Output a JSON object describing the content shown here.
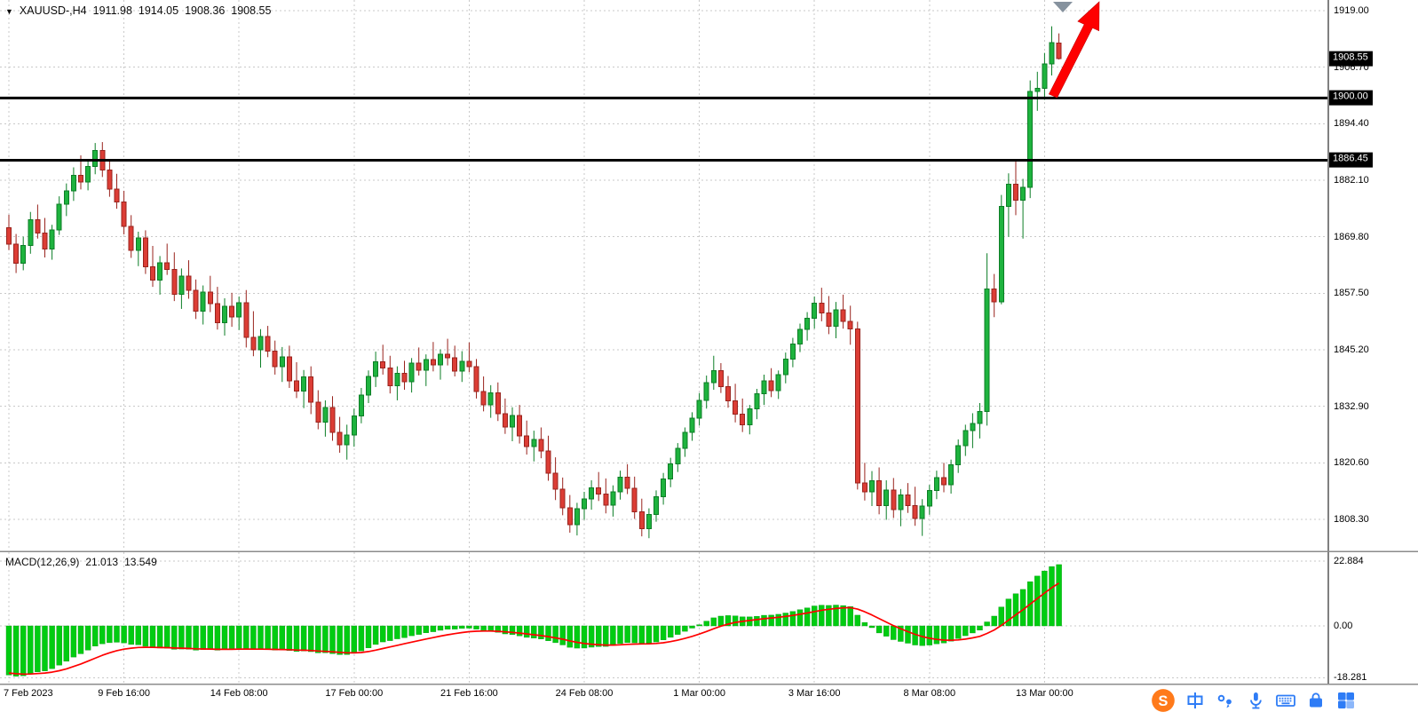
{
  "chart": {
    "header": {
      "dropdown": "▼",
      "symbol": "XAUUSD-,H4",
      "open": "1911.98",
      "high": "1914.05",
      "low": "1908.36",
      "close": "1908.55"
    }
  },
  "macd": {
    "header": {
      "title": "MACD(12,26,9)",
      "value1": "21.013",
      "value2": "13.549"
    }
  },
  "annotations": {
    "trend_arrow": {
      "type": "arrow",
      "direction": "up-right",
      "color": "#fe0000"
    },
    "marker_triangle": {
      "color": "#86929e"
    }
  },
  "taskbar": {
    "icons": [
      {
        "name": "sogou-input-logo",
        "label": "S",
        "color": "#ff7a1a"
      },
      {
        "name": "ime-chinese-mode",
        "label": "中",
        "color": "#2e7cf6"
      },
      {
        "name": "ime-punctuation",
        "label": "",
        "color": "#2e7cf6"
      },
      {
        "name": "voice-input",
        "label": "",
        "color": "#2e7cf6"
      },
      {
        "name": "soft-keyboard",
        "label": "",
        "color": "#2e7cf6"
      },
      {
        "name": "ime-toolbox-bag",
        "label": "",
        "color": "#2e7cf6"
      },
      {
        "name": "ime-toolbox-grid",
        "label": "",
        "color": "#2e7cf6"
      }
    ]
  },
  "chart_data": {
    "type": "candlestick+macd",
    "title": "XAUUSD- H4",
    "timeframe": "H4",
    "grid": true,
    "colors": {
      "up": "#1eb33e",
      "up_stroke": "#0c7e26",
      "down": "#dc3d35",
      "down_stroke": "#99231d",
      "grid": "#c9c9c9",
      "histogram": "#00cc11",
      "signal_line": "#ff0000",
      "level_line": "#000000",
      "badge_bg": "#000000"
    },
    "y_axis": {
      "gridlines": [
        1919.0,
        1906.7,
        1894.4,
        1882.1,
        1869.8,
        1857.5,
        1845.2,
        1832.9,
        1820.6,
        1808.3
      ],
      "range": [
        1801.5,
        1921.3
      ]
    },
    "hlines": [
      {
        "price": 1900.0,
        "label": "1900.00"
      },
      {
        "price": 1886.45,
        "label": "1886.45"
      }
    ],
    "current_price": {
      "price": 1908.55,
      "label": "1908.55"
    },
    "x_labels": [
      {
        "text": "7 Feb 2023",
        "bar": 0
      },
      {
        "text": "9 Feb 16:00",
        "bar": 16
      },
      {
        "text": "14 Feb 08:00",
        "bar": 32
      },
      {
        "text": "17 Feb 00:00",
        "bar": 48
      },
      {
        "text": "21 Feb 16:00",
        "bar": 64
      },
      {
        "text": "24 Feb 08:00",
        "bar": 80
      },
      {
        "text": "1 Mar 00:00",
        "bar": 96
      },
      {
        "text": "3 Mar 16:00",
        "bar": 112
      },
      {
        "text": "8 Mar 08:00",
        "bar": 128
      },
      {
        "text": "13 Mar 00:00",
        "bar": 144
      }
    ],
    "ohlc": [
      [
        1871.8,
        1874.6,
        1866.9,
        1868.2
      ],
      [
        1868.2,
        1870.4,
        1861.9,
        1864.0
      ],
      [
        1864.0,
        1869.8,
        1862.5,
        1867.9
      ],
      [
        1867.9,
        1875.2,
        1866.1,
        1873.5
      ],
      [
        1873.5,
        1876.8,
        1869.4,
        1870.6
      ],
      [
        1870.6,
        1873.9,
        1865.3,
        1867.1
      ],
      [
        1867.1,
        1872.4,
        1864.8,
        1871.3
      ],
      [
        1871.3,
        1878.6,
        1870.2,
        1876.9
      ],
      [
        1876.9,
        1881.4,
        1874.3,
        1879.8
      ],
      [
        1879.8,
        1884.9,
        1877.6,
        1883.2
      ],
      [
        1883.2,
        1887.5,
        1880.1,
        1881.7
      ],
      [
        1881.7,
        1886.3,
        1879.9,
        1885.1
      ],
      [
        1885.1,
        1890.2,
        1883.4,
        1888.6
      ],
      [
        1888.6,
        1890.4,
        1882.8,
        1884.3
      ],
      [
        1884.3,
        1886.7,
        1878.5,
        1880.2
      ],
      [
        1880.2,
        1883.5,
        1875.9,
        1877.4
      ],
      [
        1877.4,
        1879.8,
        1870.3,
        1872.1
      ],
      [
        1872.1,
        1874.5,
        1865.2,
        1866.8
      ],
      [
        1866.8,
        1870.9,
        1863.4,
        1869.5
      ],
      [
        1869.5,
        1871.2,
        1861.7,
        1863.3
      ],
      [
        1863.3,
        1867.8,
        1858.9,
        1860.4
      ],
      [
        1860.4,
        1865.6,
        1857.2,
        1864.1
      ],
      [
        1864.1,
        1868.3,
        1861.5,
        1862.7
      ],
      [
        1862.7,
        1866.4,
        1855.8,
        1857.3
      ],
      [
        1857.3,
        1862.9,
        1854.1,
        1861.2
      ],
      [
        1861.2,
        1864.7,
        1856.3,
        1858.1
      ],
      [
        1858.1,
        1860.5,
        1851.9,
        1853.6
      ],
      [
        1853.6,
        1859.2,
        1850.7,
        1857.8
      ],
      [
        1857.8,
        1861.3,
        1853.4,
        1855.2
      ],
      [
        1855.2,
        1858.9,
        1849.6,
        1851.1
      ],
      [
        1851.1,
        1856.4,
        1848.3,
        1854.7
      ],
      [
        1854.7,
        1857.6,
        1850.2,
        1852.3
      ],
      [
        1852.3,
        1856.8,
        1849.5,
        1855.4
      ],
      [
        1855.4,
        1858.2,
        1845.7,
        1847.9
      ],
      [
        1847.9,
        1853.6,
        1843.8,
        1845.2
      ],
      [
        1845.2,
        1849.7,
        1841.3,
        1848.1
      ],
      [
        1848.1,
        1850.4,
        1843.6,
        1844.9
      ],
      [
        1844.9,
        1847.2,
        1839.8,
        1841.5
      ],
      [
        1841.5,
        1845.8,
        1838.2,
        1843.7
      ],
      [
        1843.7,
        1846.1,
        1836.9,
        1838.4
      ],
      [
        1838.4,
        1842.5,
        1834.7,
        1836.2
      ],
      [
        1836.2,
        1840.8,
        1832.5,
        1839.3
      ],
      [
        1839.3,
        1841.6,
        1831.2,
        1833.8
      ],
      [
        1833.8,
        1836.4,
        1827.9,
        1829.5
      ],
      [
        1829.5,
        1834.2,
        1826.3,
        1832.6
      ],
      [
        1832.6,
        1835.1,
        1825.4,
        1827.2
      ],
      [
        1827.2,
        1830.6,
        1822.8,
        1824.5
      ],
      [
        1824.5,
        1828.9,
        1821.3,
        1826.7
      ],
      [
        1826.7,
        1832.4,
        1824.1,
        1830.8
      ],
      [
        1830.8,
        1836.9,
        1829.2,
        1835.3
      ],
      [
        1835.3,
        1840.7,
        1833.6,
        1839.4
      ],
      [
        1839.4,
        1844.8,
        1837.1,
        1842.6
      ],
      [
        1842.6,
        1846.3,
        1839.8,
        1841.2
      ],
      [
        1841.2,
        1843.9,
        1835.7,
        1837.4
      ],
      [
        1837.4,
        1841.6,
        1834.2,
        1840.1
      ],
      [
        1840.1,
        1842.8,
        1836.5,
        1838.2
      ],
      [
        1838.2,
        1843.4,
        1835.9,
        1842.3
      ],
      [
        1842.3,
        1845.7,
        1839.6,
        1840.8
      ],
      [
        1840.8,
        1844.2,
        1837.3,
        1843.1
      ],
      [
        1843.1,
        1846.9,
        1840.5,
        1841.9
      ],
      [
        1841.9,
        1845.3,
        1838.7,
        1844.2
      ],
      [
        1844.2,
        1847.6,
        1841.8,
        1843.5
      ],
      [
        1843.5,
        1846.1,
        1839.4,
        1840.6
      ],
      [
        1840.6,
        1844.9,
        1838.2,
        1842.7
      ],
      [
        1842.7,
        1846.8,
        1840.3,
        1841.5
      ],
      [
        1841.5,
        1843.2,
        1834.6,
        1836.1
      ],
      [
        1836.1,
        1839.4,
        1831.8,
        1833.2
      ],
      [
        1833.2,
        1837.5,
        1830.4,
        1835.8
      ],
      [
        1835.8,
        1838.1,
        1829.7,
        1831.3
      ],
      [
        1831.3,
        1834.6,
        1826.9,
        1828.4
      ],
      [
        1828.4,
        1832.7,
        1825.3,
        1830.9
      ],
      [
        1830.9,
        1833.2,
        1824.8,
        1826.5
      ],
      [
        1826.5,
        1829.8,
        1822.4,
        1824.1
      ],
      [
        1824.1,
        1827.6,
        1820.9,
        1825.7
      ],
      [
        1825.7,
        1828.3,
        1821.6,
        1823.2
      ],
      [
        1823.2,
        1826.5,
        1816.7,
        1818.3
      ],
      [
        1818.3,
        1821.8,
        1812.5,
        1814.9
      ],
      [
        1814.9,
        1817.4,
        1809.2,
        1810.8
      ],
      [
        1810.8,
        1813.6,
        1805.4,
        1807.1
      ],
      [
        1807.1,
        1811.9,
        1804.8,
        1810.6
      ],
      [
        1810.6,
        1814.3,
        1808.2,
        1812.7
      ],
      [
        1812.7,
        1816.8,
        1810.4,
        1815.2
      ],
      [
        1815.2,
        1818.6,
        1812.3,
        1813.8
      ],
      [
        1813.8,
        1817.2,
        1809.6,
        1811.4
      ],
      [
        1811.4,
        1815.7,
        1808.9,
        1814.3
      ],
      [
        1814.3,
        1818.9,
        1812.6,
        1817.5
      ],
      [
        1817.5,
        1820.3,
        1813.8,
        1815.1
      ],
      [
        1815.1,
        1817.6,
        1808.4,
        1809.9
      ],
      [
        1809.9,
        1812.8,
        1804.6,
        1806.3
      ],
      [
        1806.3,
        1810.7,
        1804.2,
        1809.4
      ],
      [
        1809.4,
        1814.6,
        1807.8,
        1813.2
      ],
      [
        1813.2,
        1818.4,
        1811.5,
        1817.1
      ],
      [
        1817.1,
        1821.7,
        1815.3,
        1820.4
      ],
      [
        1820.4,
        1824.9,
        1818.6,
        1823.8
      ],
      [
        1823.8,
        1828.3,
        1821.9,
        1827.2
      ],
      [
        1827.2,
        1831.6,
        1825.4,
        1830.3
      ],
      [
        1830.3,
        1835.8,
        1828.7,
        1834.2
      ],
      [
        1834.2,
        1839.6,
        1832.4,
        1838.1
      ],
      [
        1838.1,
        1843.9,
        1836.5,
        1840.7
      ],
      [
        1840.7,
        1842.3,
        1835.8,
        1837.2
      ],
      [
        1837.2,
        1839.5,
        1832.6,
        1834.1
      ],
      [
        1834.1,
        1837.8,
        1829.4,
        1831.2
      ],
      [
        1831.2,
        1834.6,
        1827.3,
        1828.9
      ],
      [
        1828.9,
        1833.2,
        1826.8,
        1832.4
      ],
      [
        1832.4,
        1836.7,
        1830.1,
        1835.6
      ],
      [
        1835.6,
        1839.8,
        1833.2,
        1838.4
      ],
      [
        1838.4,
        1841.2,
        1834.9,
        1836.3
      ],
      [
        1836.3,
        1840.7,
        1834.5,
        1839.8
      ],
      [
        1839.8,
        1844.6,
        1837.9,
        1843.2
      ],
      [
        1843.2,
        1847.8,
        1841.4,
        1846.5
      ],
      [
        1846.5,
        1850.9,
        1844.7,
        1849.6
      ],
      [
        1849.6,
        1853.4,
        1847.2,
        1852.1
      ],
      [
        1852.1,
        1856.8,
        1849.8,
        1855.3
      ],
      [
        1855.3,
        1858.7,
        1851.4,
        1853.2
      ],
      [
        1853.2,
        1856.9,
        1848.6,
        1850.3
      ],
      [
        1850.3,
        1855.6,
        1847.7,
        1853.9
      ],
      [
        1853.9,
        1857.2,
        1849.8,
        1851.4
      ],
      [
        1851.4,
        1854.8,
        1846.3,
        1849.7
      ],
      [
        1849.7,
        1851.3,
        1814.8,
        1816.2
      ],
      [
        1816.2,
        1820.6,
        1812.4,
        1814.3
      ],
      [
        1814.3,
        1818.8,
        1811.2,
        1816.7
      ],
      [
        1816.7,
        1819.6,
        1809.4,
        1811.3
      ],
      [
        1811.3,
        1816.8,
        1808.2,
        1814.7
      ],
      [
        1814.7,
        1817.3,
        1808.6,
        1810.4
      ],
      [
        1810.4,
        1814.9,
        1806.8,
        1813.6
      ],
      [
        1813.6,
        1816.2,
        1809.7,
        1811.3
      ],
      [
        1811.3,
        1815.4,
        1806.9,
        1808.5
      ],
      [
        1808.5,
        1812.7,
        1804.7,
        1811.2
      ],
      [
        1811.2,
        1815.8,
        1809.3,
        1814.6
      ],
      [
        1814.6,
        1818.9,
        1812.7,
        1817.4
      ],
      [
        1817.4,
        1820.6,
        1814.2,
        1815.8
      ],
      [
        1815.8,
        1821.3,
        1813.9,
        1820.2
      ],
      [
        1820.2,
        1825.7,
        1818.4,
        1824.3
      ],
      [
        1824.3,
        1828.9,
        1822.1,
        1827.6
      ],
      [
        1827.6,
        1831.4,
        1823.8,
        1829.2
      ],
      [
        1829.2,
        1833.6,
        1825.9,
        1831.8
      ],
      [
        1831.8,
        1866.2,
        1828.7,
        1858.4
      ],
      [
        1858.4,
        1861.7,
        1852.3,
        1855.6
      ],
      [
        1855.6,
        1878.9,
        1855.1,
        1876.4
      ],
      [
        1876.4,
        1883.6,
        1869.8,
        1881.2
      ],
      [
        1881.2,
        1886.3,
        1874.5,
        1877.8
      ],
      [
        1877.8,
        1882.4,
        1869.4,
        1880.6
      ],
      [
        1880.6,
        1903.8,
        1878.2,
        1901.4
      ],
      [
        1901.4,
        1905.7,
        1897.2,
        1902.1
      ],
      [
        1902.1,
        1909.8,
        1899.6,
        1907.4
      ],
      [
        1907.4,
        1915.6,
        1904.9,
        1912.0
      ],
      [
        1911.98,
        1914.05,
        1908.36,
        1908.55
      ]
    ],
    "macd": {
      "params": "12,26,9",
      "macd_value": 21.013,
      "signal_value": 13.549,
      "axis": [
        {
          "value": 22.884,
          "label": "22.884"
        },
        {
          "value": 0.0,
          "label": "0.00"
        },
        {
          "value": -18.281,
          "label": "-18.281"
        }
      ]
    }
  }
}
